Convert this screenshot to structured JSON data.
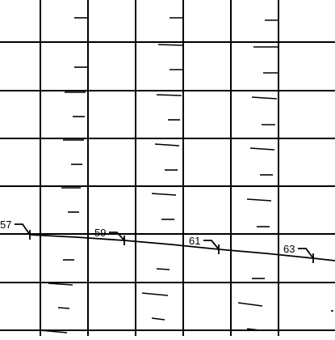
{
  "sheet": {
    "grid_columns": 7,
    "grid_rows": 7,
    "line_color": "#000000",
    "background": "#ffffff"
  },
  "station_labels": [
    {
      "id": "57",
      "text": "57"
    },
    {
      "id": "59",
      "text": "59"
    },
    {
      "id": "61",
      "text": "61"
    },
    {
      "id": "63",
      "text": "63"
    }
  ]
}
